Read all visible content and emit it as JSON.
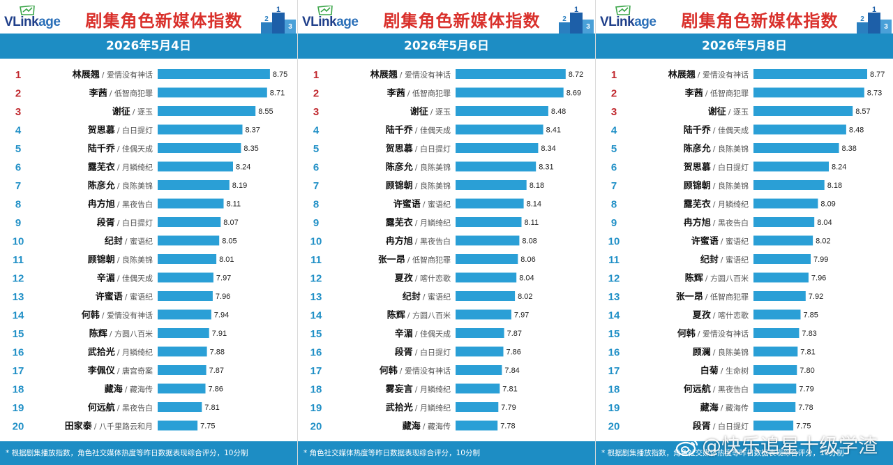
{
  "panels": [
    {
      "logo": "VLinkage",
      "title": "剧集角色新媒体指数",
      "date": "2026年5月4日",
      "footer": "* 根据剧集播放指数，角色社交媒体热度等昨日数据表现综合评分，10分制",
      "chart_data": {
        "type": "bar",
        "orientation": "horizontal",
        "categories": [
          "林展翘",
          "李茜",
          "谢征",
          "贺思慕",
          "陆千乔",
          "露芜衣",
          "陈彦允",
          "冉方旭",
          "段胥",
          "纪封",
          "顾锦朝",
          "辛湄",
          "许蜜语",
          "何韩",
          "陈辉",
          "武拾光",
          "李佩仪",
          "藏海",
          "何远航",
          "田家泰"
        ],
        "shows": [
          "爱情没有神话",
          "低智商犯罪",
          "逐玉",
          "白日提灯",
          "佳偶天成",
          "月鳞绮纪",
          "良陈美锦",
          "黑夜告白",
          "白日提灯",
          "蜜语纪",
          "良陈美锦",
          "佳偶天成",
          "蜜语纪",
          "爱情没有神话",
          "方圆八百米",
          "月鳞绮纪",
          "唐宫奇案",
          "藏海传",
          "黑夜告白",
          "八千里路云和月"
        ],
        "values": [
          8.75,
          8.71,
          8.55,
          8.37,
          8.35,
          8.24,
          8.19,
          8.11,
          8.07,
          8.05,
          8.01,
          7.97,
          7.96,
          7.94,
          7.91,
          7.88,
          7.87,
          7.86,
          7.81,
          7.75
        ],
        "ranks": [
          "1",
          "2",
          "3",
          "4",
          "5",
          "6",
          "7",
          "8",
          "9",
          "10",
          "11",
          "12",
          "13",
          "14",
          "15",
          "16",
          "17",
          "18",
          "19",
          "20"
        ]
      }
    },
    {
      "logo": "VLinkage",
      "title": "剧集角色新媒体指数",
      "date": "2026年5月6日",
      "footer": "*                角色社交媒体热度等昨日数据表现综合评分，10分制",
      "chart_data": {
        "type": "bar",
        "orientation": "horizontal",
        "categories": [
          "林展翘",
          "李茜",
          "谢征",
          "陆千乔",
          "贺思慕",
          "陈彦允",
          "顾锦朝",
          "许蜜语",
          "露芜衣",
          "冉方旭",
          "张一昂",
          "夏孜",
          "纪封",
          "陈辉",
          "辛湄",
          "段胥",
          "何韩",
          "雾妄言",
          "武拾光",
          "藏海"
        ],
        "shows": [
          "爱情没有神话",
          "低智商犯罪",
          "逐玉",
          "佳偶天成",
          "白日提灯",
          "良陈美锦",
          "良陈美锦",
          "蜜语纪",
          "月鳞绮纪",
          "黑夜告白",
          "低智商犯罪",
          "喀什恋歌",
          "蜜语纪",
          "方圆八百米",
          "佳偶天成",
          "白日提灯",
          "爱情没有神话",
          "月鳞绮纪",
          "月鳞绮纪",
          "藏海传"
        ],
        "values": [
          8.72,
          8.69,
          8.48,
          8.41,
          8.34,
          8.31,
          8.18,
          8.14,
          8.11,
          8.08,
          8.06,
          8.04,
          8.02,
          7.97,
          7.87,
          7.86,
          7.84,
          7.81,
          7.79,
          7.78
        ],
        "ranks": [
          "1",
          "2",
          "3",
          "4",
          "5",
          "6",
          "7",
          "8",
          "9",
          "10",
          "11",
          "12",
          "13",
          "14",
          "15",
          "16",
          "17",
          "18",
          "19",
          "20"
        ]
      }
    },
    {
      "logo": "VLinkage",
      "title": "剧集角色新媒体指数",
      "date": "2026年5月8日",
      "footer": "* 根据剧集播放指数，角色社交媒体热度等昨日数据表现综合评分，10分制",
      "chart_data": {
        "type": "bar",
        "orientation": "horizontal",
        "categories": [
          "林展翘",
          "李茜",
          "谢征",
          "陆千乔",
          "陈彦允",
          "贺思慕",
          "顾锦朝",
          "露芜衣",
          "冉方旭",
          "许蜜语",
          "纪封",
          "陈辉",
          "张一昂",
          "夏孜",
          "何韩",
          "顾澜",
          "白菊",
          "何远航",
          "藏海",
          "段胥"
        ],
        "shows": [
          "爱情没有神话",
          "低智商犯罪",
          "逐玉",
          "佳偶天成",
          "良陈美锦",
          "白日提灯",
          "良陈美锦",
          "月鳞绮纪",
          "黑夜告白",
          "蜜语纪",
          "蜜语纪",
          "方圆八百米",
          "低智商犯罪",
          "喀什恋歌",
          "爱情没有神话",
          "良陈美锦",
          "生命树",
          "黑夜告白",
          "藏海传",
          "白日提灯"
        ],
        "values": [
          8.77,
          8.73,
          8.57,
          8.48,
          8.38,
          8.24,
          8.18,
          8.09,
          8.04,
          8.02,
          7.99,
          7.96,
          7.92,
          7.85,
          7.83,
          7.81,
          7.8,
          7.79,
          7.78,
          7.75
        ],
        "ranks": [
          "1",
          "2",
          "3",
          "4",
          "5",
          "6",
          "7",
          "8",
          "9",
          "10",
          "11",
          "12",
          "13",
          "14",
          "15",
          "16",
          "17",
          "18",
          "19",
          "20"
        ]
      }
    }
  ],
  "watermark": "@快乐追星十级学渣",
  "colors": {
    "bar": "#2a9fd6",
    "header_bar": "#1d8dc4",
    "title": "#d9302b",
    "rank_top": "#c0272d",
    "rank_rest": "#1f8fc6"
  }
}
